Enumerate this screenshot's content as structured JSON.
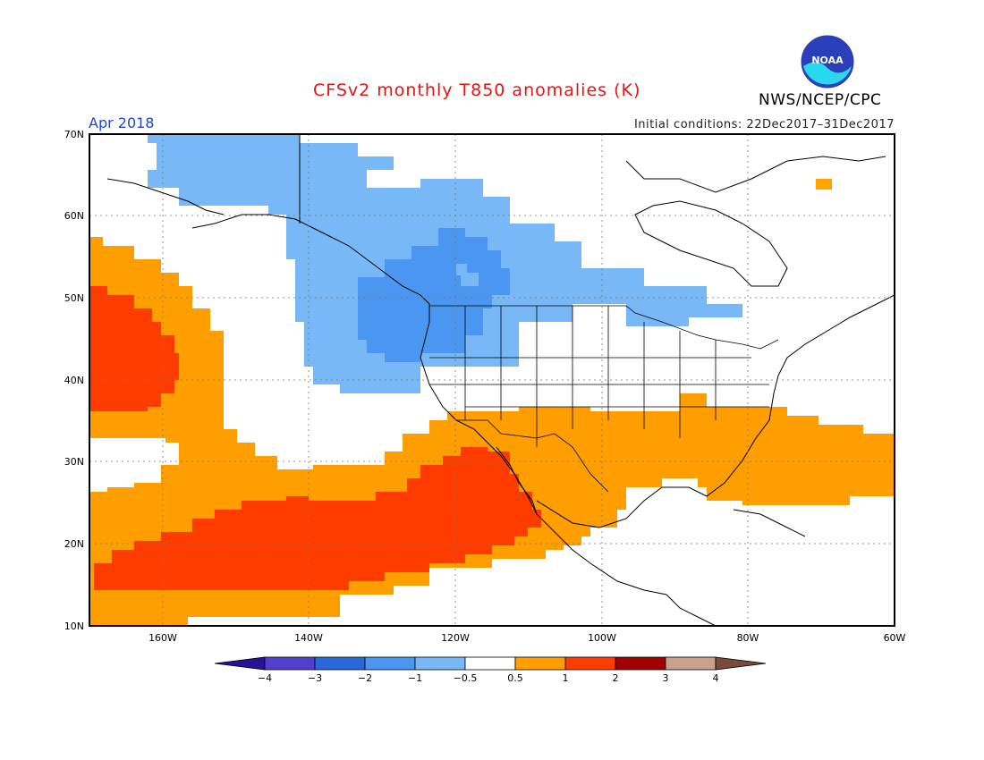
{
  "header": {
    "title": "CFSv2 monthly T850 anomalies (K)",
    "month": "Apr 2018",
    "initial_conditions": "Initial conditions: 22Dec2017–31Dec2017",
    "agency": "NWS/NCEP/CPC",
    "logo_text": "NOAA"
  },
  "axes": {
    "lat_labels": [
      "70N",
      "60N",
      "50N",
      "40N",
      "30N",
      "20N",
      "10N"
    ],
    "lon_labels": [
      "160W",
      "140W",
      "120W",
      "100W",
      "80W",
      "60W"
    ]
  },
  "colorbar": {
    "labels": [
      "−4",
      "−3",
      "−2",
      "−1",
      "−0.5",
      "0.5",
      "1",
      "2",
      "3",
      "4"
    ],
    "colors": [
      "#2a1296",
      "#5040d0",
      "#2868dc",
      "#4a96f0",
      "#78b8f6",
      "#ffffff",
      "#ff9e00",
      "#ff3c00",
      "#a00000",
      "#c8a08c",
      "#7a4a3a"
    ]
  },
  "anomaly_colors": {
    "light_blue": "#78b8f6",
    "mid_blue": "#4a96f0",
    "orange": "#ff9e00",
    "red": "#ff3c00",
    "yellow_orange": "#ffa400"
  }
}
